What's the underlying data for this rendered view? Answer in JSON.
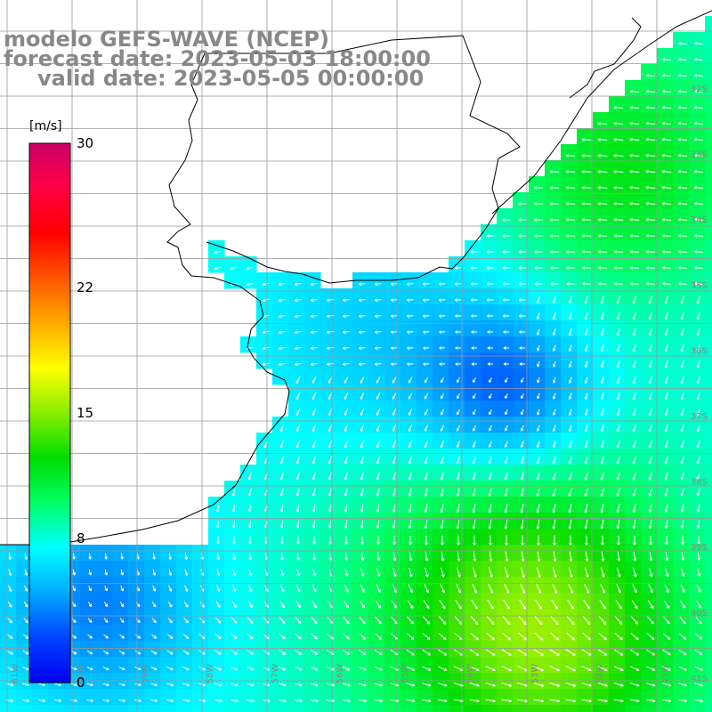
{
  "title": {
    "line1": "modelo GEFS-WAVE (NCEP)",
    "line2": "forecast date: 2023-05-03 18:00:00",
    "line3": "valid date: 2023-05-05 00:00:00"
  },
  "colorbar": {
    "unit": "[m/s]",
    "min": 0,
    "max": 30,
    "ticks": [
      {
        "label": "30",
        "value": 30
      },
      {
        "label": "22",
        "value": 22
      },
      {
        "label": "15",
        "value": 15
      },
      {
        "label": "8",
        "value": 8
      },
      {
        "label": "0",
        "value": 0
      }
    ],
    "colors": [
      "#0000ee",
      "#0044ff",
      "#00aaff",
      "#00ffff",
      "#00ff66",
      "#00dd00",
      "#88ee00",
      "#ffff00",
      "#ffaa00",
      "#ff5500",
      "#ff0000",
      "#ff0044",
      "#cc0066"
    ]
  },
  "map": {
    "lat_labels": [
      "32S",
      "33S",
      "34S",
      "35S",
      "36S",
      "37S",
      "38S",
      "39S",
      "40S",
      "41S"
    ],
    "lon_labels": [
      "61W",
      "60W",
      "59W",
      "58W",
      "57W",
      "56W",
      "55W",
      "54W",
      "53W",
      "52W",
      "51W"
    ],
    "colors": {
      "land": "#ffffff",
      "coast": "#000000",
      "grid": "#999999",
      "arrow": "#ffffff",
      "label": "#888888"
    }
  }
}
